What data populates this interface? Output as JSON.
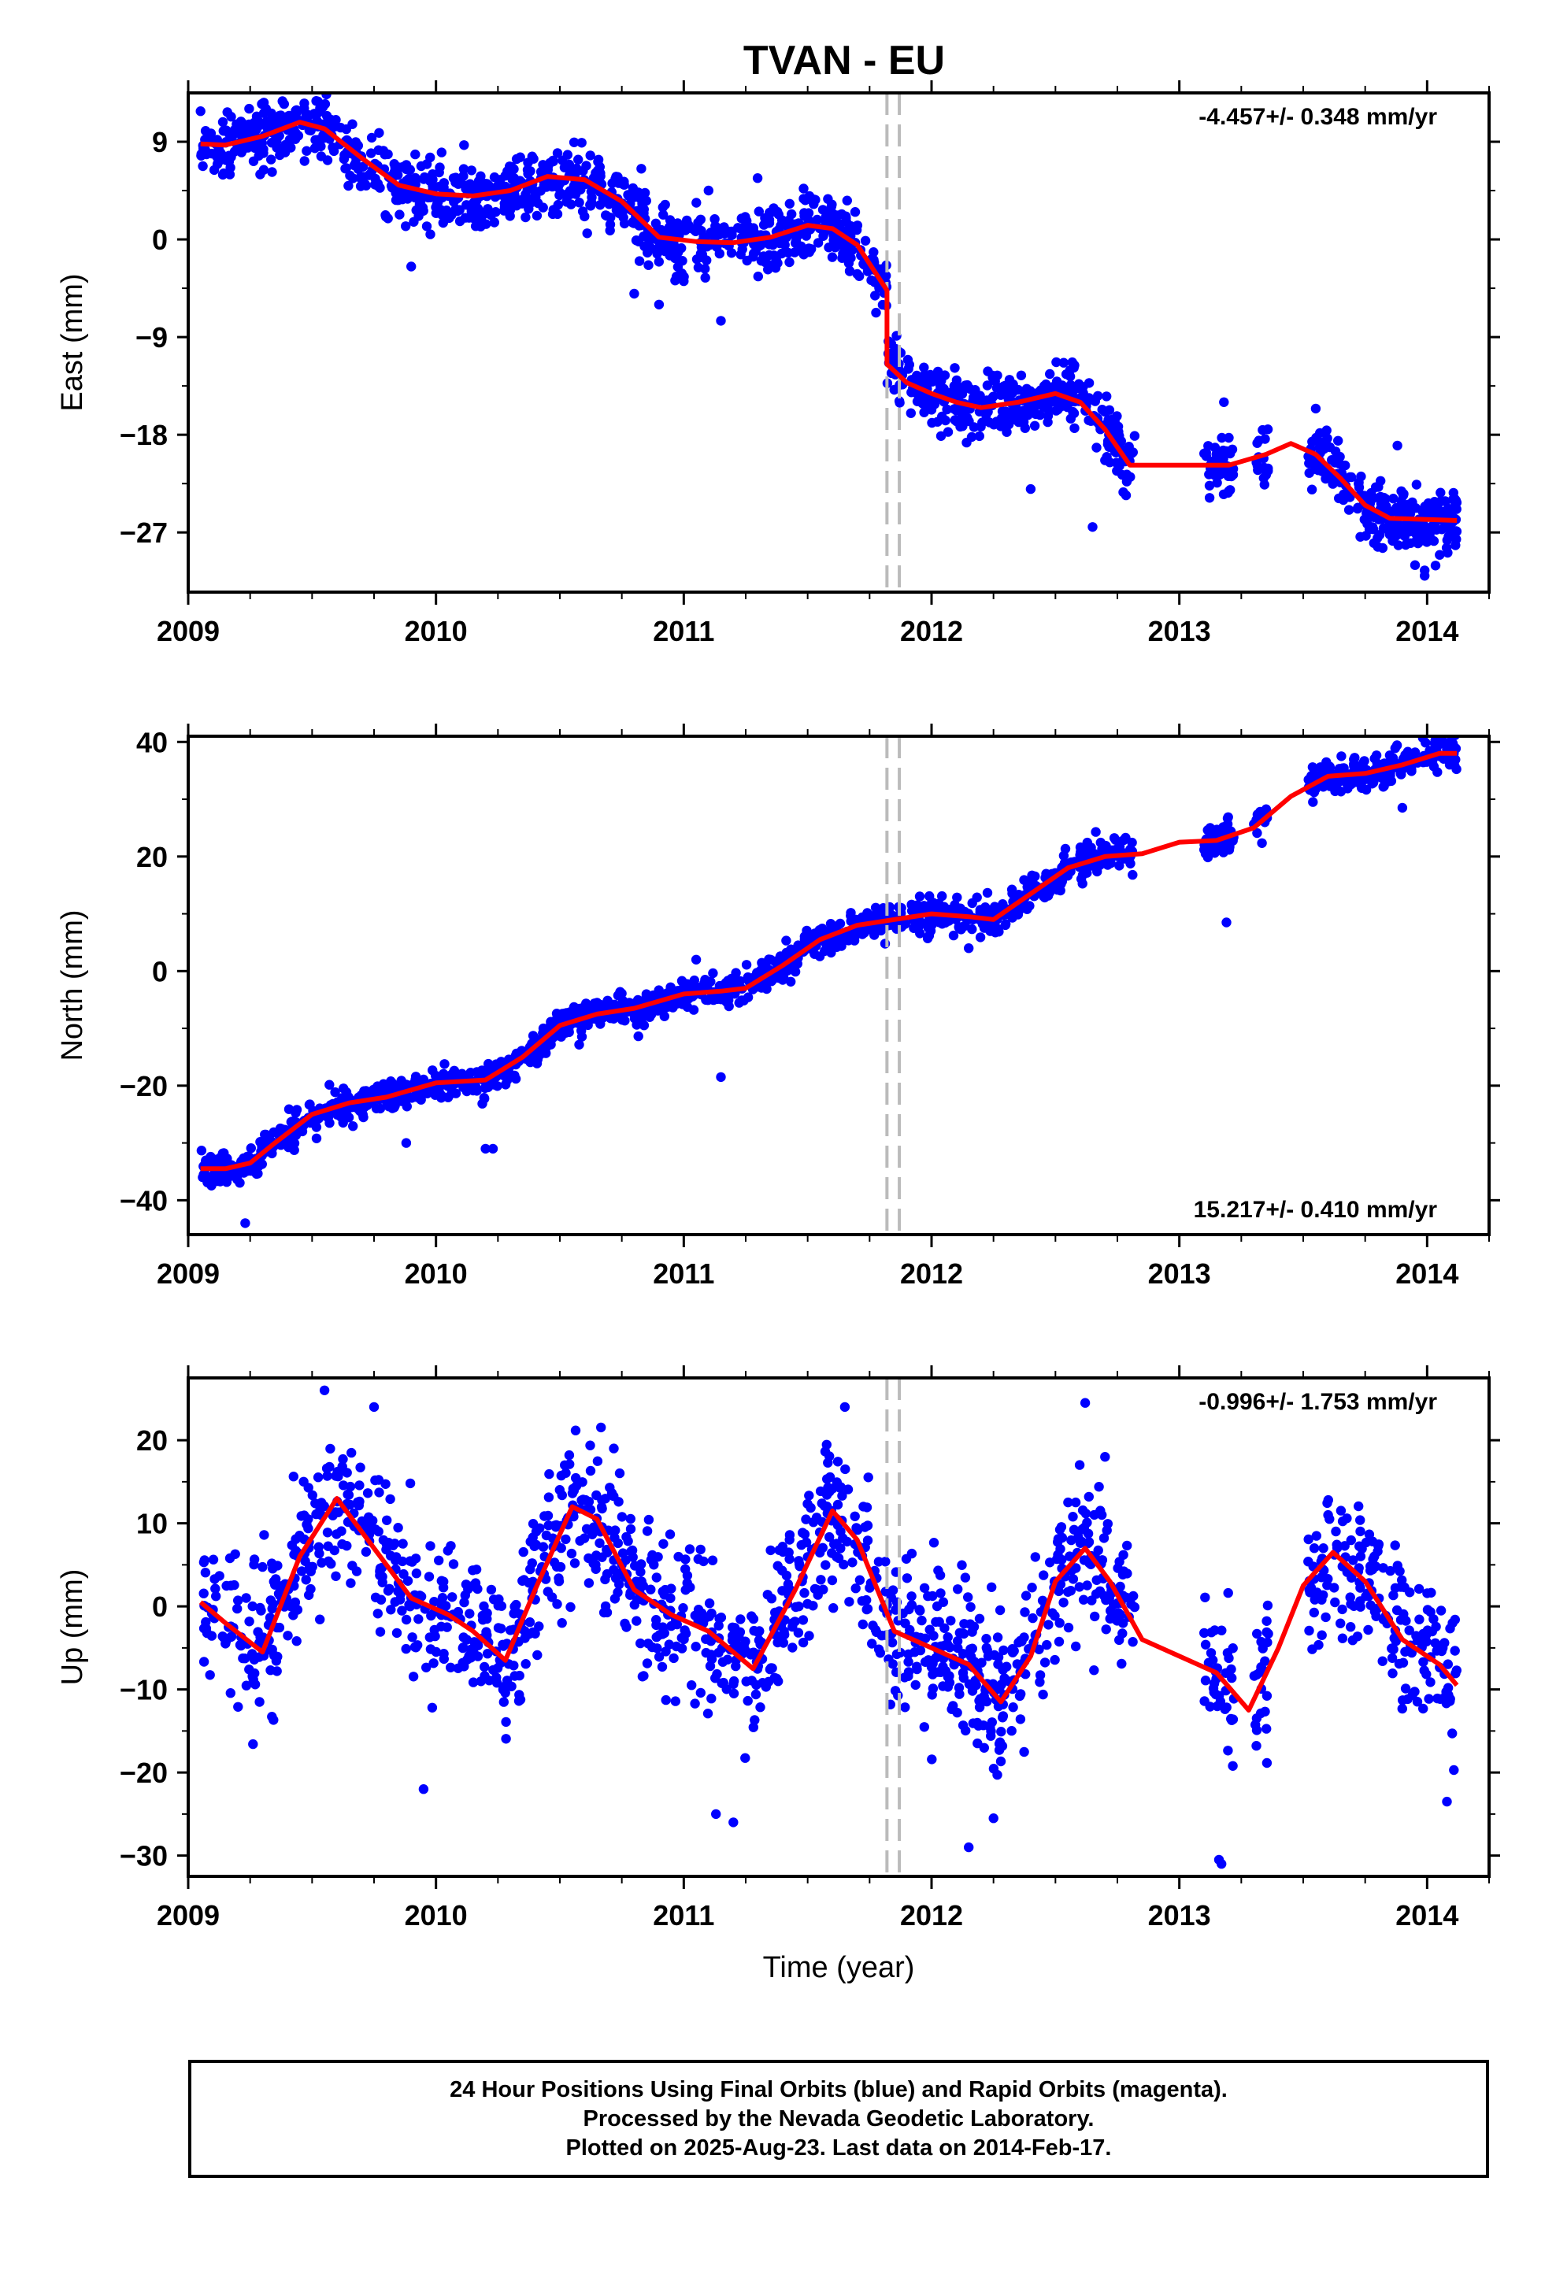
{
  "title": "TVAN - EU",
  "colors": {
    "points": "#0000ff",
    "fit": "#ff0000",
    "event_lines": "#bbbbbb",
    "frame": "#000000"
  },
  "chart_data": [
    {
      "type": "scatter",
      "panel": "east",
      "ylabel": "East (mm)",
      "xlabel": "",
      "rate_text": "-4.457+/- 0.348 mm/yr",
      "rate_position": "top-right",
      "xlim": [
        2009.0,
        2014.25
      ],
      "ylim": [
        -32.5,
        13.5
      ],
      "yticks": [
        -27,
        -18,
        -9,
        0,
        9
      ],
      "ytick_labels": [
        "−27",
        "−18",
        "−9",
        "0",
        "9"
      ],
      "xticks": [
        2009,
        2010,
        2011,
        2012,
        2013,
        2014
      ],
      "xtick_labels": [
        "2009",
        "2010",
        "2011",
        "2012",
        "2013",
        "2014"
      ],
      "event_lines_x": [
        2011.82,
        2011.87
      ],
      "fit_x": [
        2009.05,
        2009.15,
        2009.3,
        2009.45,
        2009.55,
        2009.7,
        2009.85,
        2010.0,
        2010.15,
        2010.3,
        2010.45,
        2010.6,
        2010.75,
        2010.9,
        2011.05,
        2011.2,
        2011.35,
        2011.5,
        2011.6,
        2011.7,
        2011.82,
        2011.8201,
        2011.9,
        2012.0,
        2012.1,
        2012.2,
        2012.35,
        2012.5,
        2012.6,
        2012.7,
        2012.8,
        2013.0,
        2013.1,
        2013.2,
        2013.35,
        2013.45,
        2013.55,
        2013.65,
        2013.75,
        2013.85,
        2014.0,
        2014.12
      ],
      "fit_y": [
        8.8,
        8.7,
        9.5,
        10.8,
        10.2,
        7.5,
        5.0,
        4.2,
        4.0,
        4.5,
        5.8,
        5.5,
        3.5,
        0.2,
        -0.2,
        -0.3,
        0.2,
        1.3,
        1.0,
        -0.5,
        -4.7,
        -11.5,
        -13.2,
        -14.2,
        -15.0,
        -15.5,
        -15.0,
        -14.2,
        -15.0,
        -17.5,
        -20.8,
        -20.8,
        -20.8,
        -20.8,
        -19.8,
        -18.8,
        -19.8,
        -22.0,
        -24.5,
        -25.7,
        -25.8,
        -25.9
      ],
      "seed": 11,
      "n_points": 1650,
      "noise": 1.5,
      "data_ranges": [
        [
          2009.05,
          2012.82
        ],
        [
          2013.1,
          2013.22
        ],
        [
          2013.3,
          2013.36
        ],
        [
          2013.52,
          2014.12
        ]
      ],
      "outliers": [
        [
          2013.99,
          -31.0
        ],
        [
          2013.99,
          -30.5
        ],
        [
          2013.88,
          -19.0
        ],
        [
          2013.18,
          -15.0
        ],
        [
          2012.65,
          -26.5
        ],
        [
          2011.15,
          -7.5
        ],
        [
          2010.9,
          -6.0
        ],
        [
          2010.8,
          -5.0
        ],
        [
          2009.9,
          -2.5
        ],
        [
          2011.1,
          4.5
        ],
        [
          2012.4,
          -23.0
        ]
      ]
    },
    {
      "type": "scatter",
      "panel": "north",
      "ylabel": "North (mm)",
      "xlabel": "",
      "rate_text": "15.217+/- 0.410 mm/yr",
      "rate_position": "bottom-right",
      "xlim": [
        2009.0,
        2014.25
      ],
      "ylim": [
        -46.0,
        41.0
      ],
      "yticks": [
        -40,
        -20,
        0,
        20,
        40
      ],
      "ytick_labels": [
        "−40",
        "−20",
        "0",
        "20",
        "40"
      ],
      "xticks": [
        2009,
        2010,
        2011,
        2012,
        2013,
        2014
      ],
      "xtick_labels": [
        "2009",
        "2010",
        "2011",
        "2012",
        "2013",
        "2014"
      ],
      "event_lines_x": [
        2011.82,
        2011.87
      ],
      "fit_x": [
        2009.05,
        2009.15,
        2009.25,
        2009.35,
        2009.5,
        2009.65,
        2009.8,
        2010.0,
        2010.2,
        2010.35,
        2010.5,
        2010.65,
        2010.8,
        2011.0,
        2011.15,
        2011.25,
        2011.4,
        2011.55,
        2011.7,
        2011.85,
        2012.0,
        2012.15,
        2012.25,
        2012.4,
        2012.55,
        2012.7,
        2012.85,
        2013.0,
        2013.15,
        2013.3,
        2013.45,
        2013.6,
        2013.75,
        2013.9,
        2014.05,
        2014.12
      ],
      "fit_y": [
        -34.5,
        -34.5,
        -33.5,
        -30.0,
        -25.0,
        -23.0,
        -22.0,
        -19.5,
        -19.0,
        -15.0,
        -9.5,
        -7.5,
        -6.5,
        -4.0,
        -3.5,
        -3.0,
        1.0,
        5.5,
        8.0,
        9.0,
        10.0,
        9.5,
        9.0,
        13.5,
        18.0,
        20.0,
        20.5,
        22.5,
        22.8,
        25.0,
        30.5,
        34.0,
        34.5,
        36.0,
        38.0,
        38.0
      ],
      "seed": 23,
      "n_points": 1650,
      "noise": 1.4,
      "data_ranges": [
        [
          2009.05,
          2012.82
        ],
        [
          2013.1,
          2013.22
        ],
        [
          2013.3,
          2013.36
        ],
        [
          2013.52,
          2014.12
        ]
      ],
      "outliers": [
        [
          2009.23,
          -44.0
        ],
        [
          2011.15,
          -18.5
        ],
        [
          2013.19,
          8.5
        ],
        [
          2010.2,
          -31.0
        ],
        [
          2010.23,
          -31.0
        ],
        [
          2009.88,
          -30.0
        ],
        [
          2013.9,
          28.5
        ],
        [
          2012.15,
          4.0
        ],
        [
          2011.05,
          2.0
        ]
      ]
    },
    {
      "type": "scatter",
      "panel": "up",
      "ylabel": "Up (mm)",
      "xlabel": "Time (year)",
      "rate_text": "-0.996+/- 1.753 mm/yr",
      "rate_position": "top-right",
      "xlim": [
        2009.0,
        2014.25
      ],
      "ylim": [
        -32.5,
        27.5
      ],
      "yticks": [
        -30,
        -20,
        -10,
        0,
        10,
        20
      ],
      "ytick_labels": [
        "−30",
        "−20",
        "−10",
        "0",
        "10",
        "20"
      ],
      "xticks": [
        2009,
        2010,
        2011,
        2012,
        2013,
        2014
      ],
      "xtick_labels": [
        "2009",
        "2010",
        "2011",
        "2012",
        "2013",
        "2014"
      ],
      "event_lines_x": [
        2011.82,
        2011.87
      ],
      "fit_x": [
        2009.05,
        2009.15,
        2009.3,
        2009.45,
        2009.6,
        2009.75,
        2009.9,
        2010.05,
        2010.15,
        2010.28,
        2010.4,
        2010.55,
        2010.65,
        2010.8,
        2010.95,
        2011.1,
        2011.28,
        2011.45,
        2011.6,
        2011.7,
        2011.85,
        2012.0,
        2012.15,
        2012.28,
        2012.4,
        2012.5,
        2012.62,
        2012.72,
        2012.85,
        2013.0,
        2013.15,
        2013.28,
        2013.4,
        2013.5,
        2013.62,
        2013.75,
        2013.9,
        2014.05,
        2014.12
      ],
      "fit_y": [
        0.5,
        -2.0,
        -5.5,
        6.0,
        13.0,
        7.0,
        1.0,
        -1.0,
        -3.0,
        -6.5,
        2.0,
        12.0,
        10.5,
        2.0,
        -1.0,
        -3.0,
        -7.5,
        2.0,
        11.5,
        8.0,
        -3.0,
        -5.0,
        -7.0,
        -11.5,
        -6.0,
        3.0,
        7.0,
        3.0,
        -4.0,
        -6.0,
        -8.0,
        -12.5,
        -5.0,
        2.5,
        6.5,
        3.0,
        -4.0,
        -7.0,
        -9.5
      ],
      "seed": 37,
      "n_points": 1500,
      "noise": 4.5,
      "data_ranges": [
        [
          2009.05,
          2012.82
        ],
        [
          2013.1,
          2013.22
        ],
        [
          2013.3,
          2013.36
        ],
        [
          2013.52,
          2014.12
        ]
      ],
      "outliers": [
        [
          2013.17,
          -31.0
        ],
        [
          2013.16,
          -30.5
        ],
        [
          2012.15,
          -29.0
        ],
        [
          2011.13,
          -25.0
        ],
        [
          2011.2,
          -26.0
        ],
        [
          2009.95,
          -22.0
        ],
        [
          2014.08,
          -23.5
        ],
        [
          2009.55,
          26.0
        ],
        [
          2012.62,
          24.5
        ],
        [
          2011.65,
          24.0
        ],
        [
          2009.75,
          24.0
        ],
        [
          2012.7,
          18.0
        ],
        [
          2012.25,
          -25.5
        ]
      ]
    }
  ],
  "footer": {
    "line1": "24 Hour Positions Using Final Orbits (blue) and Rapid Orbits (magenta).",
    "line2": "Processed by the Nevada Geodetic Laboratory.",
    "line3": "Plotted on 2025-Aug-23. Last data on 2014-Feb-17."
  }
}
